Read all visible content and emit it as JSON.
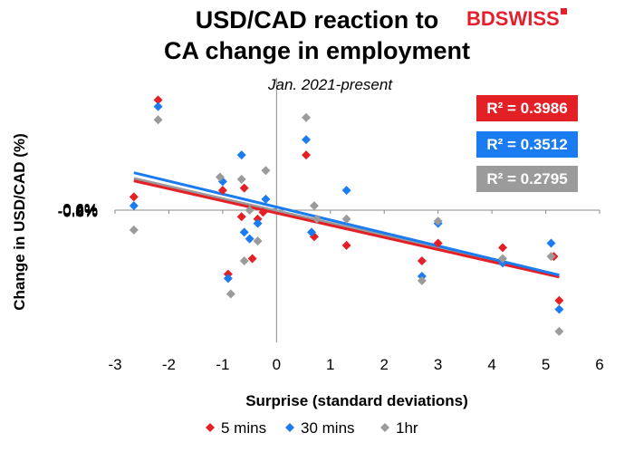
{
  "title_line1": "USD/CAD reaction to",
  "title_line2": "CA change in employment",
  "logo": {
    "part1": "BD",
    "part2": "SWISS"
  },
  "subtitle": "Jan. 2021-present",
  "r2_labels": [
    "R² = 0.3986",
    "R² = 0.3512",
    "R² = 0.2795"
  ],
  "colors": {
    "5min": "#e32026",
    "30min": "#1a7cf0",
    "1hr": "#9b9b9b"
  },
  "chart_data": {
    "type": "scatter",
    "xlabel": "Surprise (standard deviations)",
    "ylabel": "Change in USD/CAD (%)",
    "xlim": [
      -3,
      6
    ],
    "ylim": [
      -0.6,
      0.6
    ],
    "xticks": [
      "-3",
      "-2",
      "-1",
      "0",
      "1",
      "2",
      "3",
      "4",
      "5",
      "6"
    ],
    "yticks": [
      "0.6%",
      "0.4%",
      "0.2%",
      "0.0%",
      "-0.2%",
      "-0.4%",
      "-0.6%"
    ],
    "legend_position": "bottom",
    "series": [
      {
        "name": "5 mins",
        "color": "#e32026",
        "points": [
          [
            -2.65,
            0.06
          ],
          [
            -2.2,
            0.5
          ],
          [
            -1.0,
            0.09
          ],
          [
            -0.9,
            -0.29
          ],
          [
            -0.65,
            -0.03
          ],
          [
            -0.6,
            0.1
          ],
          [
            -0.45,
            -0.22
          ],
          [
            -0.35,
            -0.04
          ],
          [
            -0.25,
            -0.01
          ],
          [
            0.55,
            0.25
          ],
          [
            0.7,
            -0.12
          ],
          [
            1.3,
            -0.16
          ],
          [
            2.7,
            -0.23
          ],
          [
            3.0,
            -0.15
          ],
          [
            4.2,
            -0.17
          ],
          [
            5.15,
            -0.21
          ],
          [
            5.25,
            -0.41
          ]
        ],
        "trend": {
          "slope": -0.0552,
          "intercept": -0.0133
        },
        "r2": 0.3986
      },
      {
        "name": "30 mins",
        "color": "#1a7cf0",
        "points": [
          [
            -2.65,
            0.02
          ],
          [
            -2.2,
            0.47
          ],
          [
            -1.0,
            0.13
          ],
          [
            -0.9,
            -0.31
          ],
          [
            -0.65,
            0.25
          ],
          [
            -0.6,
            -0.1
          ],
          [
            -0.5,
            -0.13
          ],
          [
            -0.35,
            -0.06
          ],
          [
            -0.2,
            0.05
          ],
          [
            0.55,
            0.32
          ],
          [
            0.65,
            -0.1
          ],
          [
            1.3,
            0.09
          ],
          [
            2.7,
            -0.3
          ],
          [
            3.0,
            -0.06
          ],
          [
            4.2,
            -0.24
          ],
          [
            5.1,
            -0.15
          ],
          [
            5.25,
            -0.45
          ]
        ],
        "trend": {
          "slope": -0.0588,
          "intercept": 0.0141
        },
        "r2": 0.3512
      },
      {
        "name": "1hr",
        "color": "#9b9b9b",
        "points": [
          [
            -2.65,
            -0.09
          ],
          [
            -2.2,
            0.41
          ],
          [
            -1.05,
            0.15
          ],
          [
            -0.85,
            -0.38
          ],
          [
            -0.65,
            0.14
          ],
          [
            -0.6,
            -0.23
          ],
          [
            -0.5,
            0.0
          ],
          [
            -0.35,
            -0.14
          ],
          [
            -0.2,
            0.18
          ],
          [
            0.55,
            0.42
          ],
          [
            0.7,
            0.02
          ],
          [
            0.75,
            -0.04
          ],
          [
            1.3,
            -0.04
          ],
          [
            2.7,
            -0.32
          ],
          [
            3.0,
            -0.05
          ],
          [
            4.2,
            -0.22
          ],
          [
            5.1,
            -0.21
          ],
          [
            5.25,
            -0.55
          ]
        ],
        "trend": {
          "slope": -0.0555,
          "intercept": -0.0033
        },
        "r2": 0.2795
      }
    ]
  }
}
